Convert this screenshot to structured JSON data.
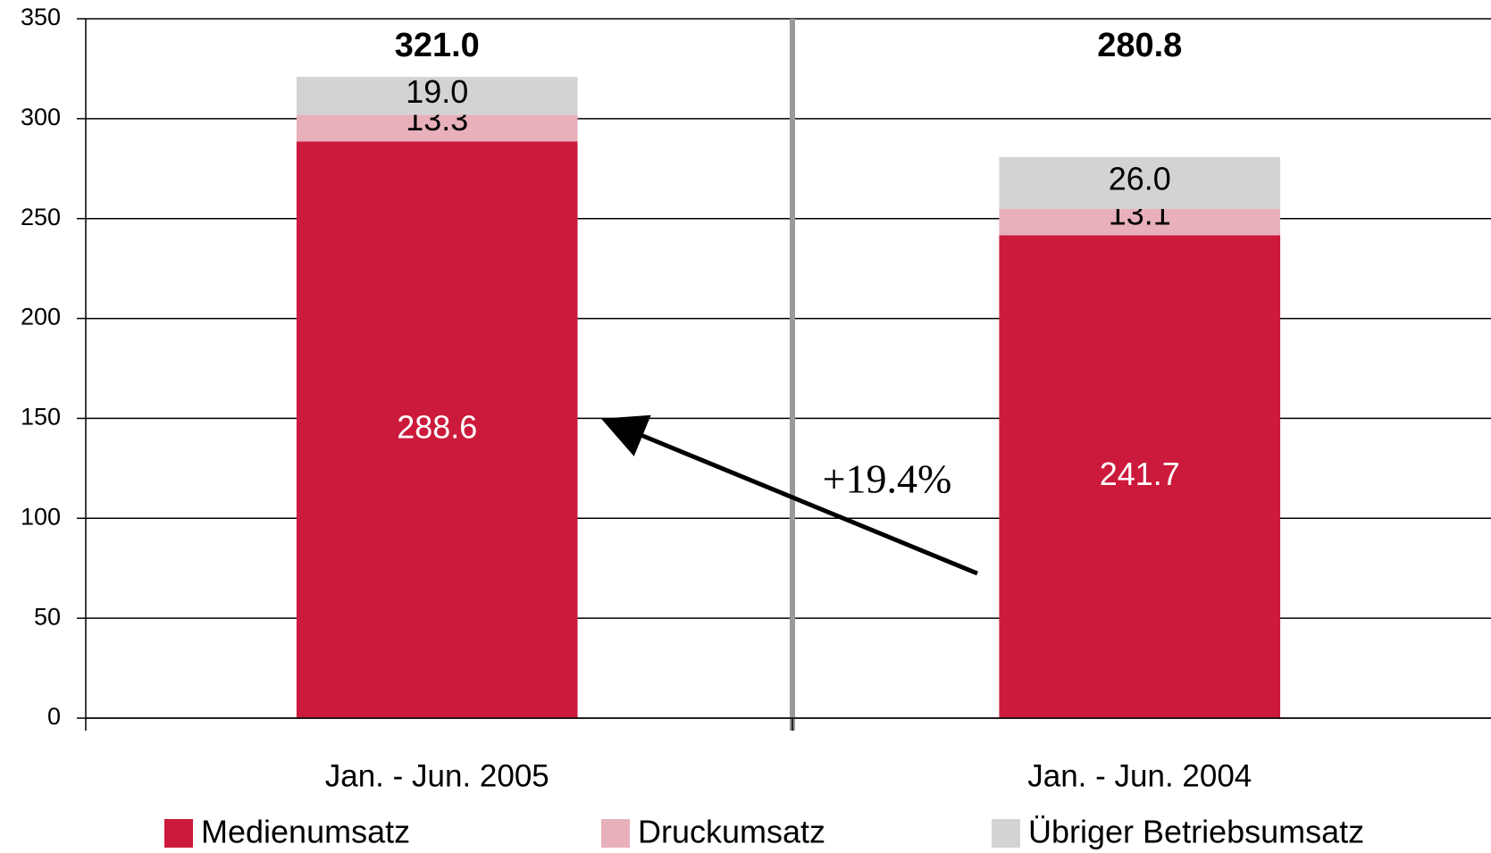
{
  "chart_data": {
    "type": "stacked_bar",
    "categories": [
      "Jan. - Jun. 2005",
      "Jan. - Jun. 2004"
    ],
    "series": [
      {
        "name": "Medienumsatz",
        "color": "#cc1a3c",
        "values": [
          288.6,
          241.7
        ],
        "value_labels": [
          "288.6",
          "241.7"
        ]
      },
      {
        "name": "Druckumsatz",
        "color": "#e8b0bb",
        "values": [
          13.3,
          13.1
        ],
        "value_labels": [
          "13.3",
          "13.1"
        ]
      },
      {
        "name": "Übriger Betriebsumsatz",
        "color": "#d3d3d3",
        "values": [
          19.0,
          26.0
        ],
        "value_labels": [
          "19.0",
          "26.0"
        ]
      }
    ],
    "totals": [
      "321.0",
      "280.8"
    ],
    "annotation": "+19.4%",
    "ylim": [
      0,
      350
    ],
    "yticks": [
      0,
      50,
      100,
      150,
      200,
      250,
      300,
      350
    ],
    "grid": true
  }
}
